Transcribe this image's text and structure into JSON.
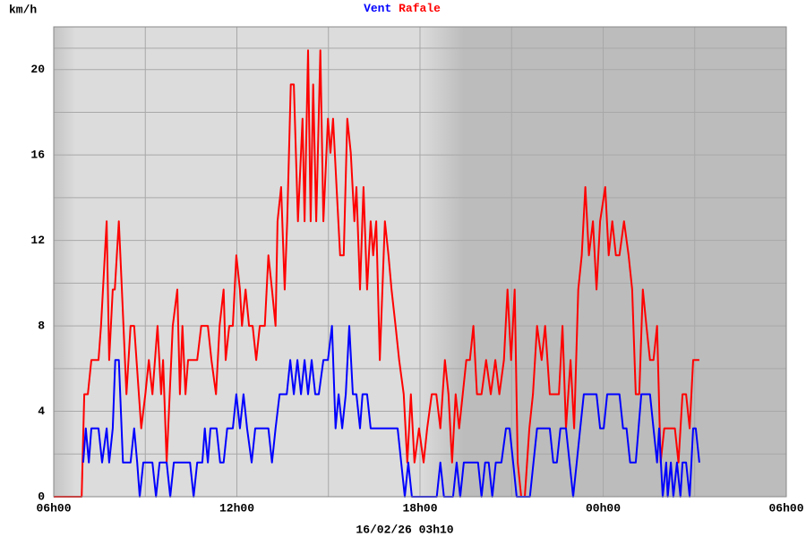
{
  "chart_data": {
    "type": "line",
    "y_label": "km/h",
    "date_label": "16/02/26 03h10",
    "xlim": [
      0,
      1440
    ],
    "ylim": [
      0,
      22
    ],
    "xticks": [
      {
        "value": 0,
        "label": "06h00"
      },
      {
        "value": 360,
        "label": "12h00"
      },
      {
        "value": 720,
        "label": "18h00"
      },
      {
        "value": 1080,
        "label": "00h00"
      },
      {
        "value": 1440,
        "label": "06h00"
      }
    ],
    "yticks": [
      0,
      4,
      8,
      12,
      16,
      20
    ],
    "grid": true,
    "series": [
      {
        "name": "Vent",
        "color": "#0000ff",
        "x": [
          58,
          63,
          69,
          74,
          88,
          95,
          104,
          109,
          116,
          121,
          128,
          136,
          151,
          158,
          164,
          169,
          176,
          194,
          201,
          208,
          222,
          229,
          236,
          268,
          275,
          282,
          292,
          297,
          303,
          308,
          320,
          327,
          334,
          341,
          352,
          359,
          366,
          373,
          380,
          389,
          396,
          422,
          429,
          436,
          444,
          451,
          458,
          465,
          472,
          479,
          486,
          493,
          500,
          507,
          514,
          521,
          530,
          539,
          547,
          554,
          560,
          567,
          574,
          581,
          588,
          595,
          602,
          607,
          616,
          623,
          634,
          676,
          683,
          690,
          697,
          704,
          753,
          760,
          767,
          785,
          792,
          799,
          806,
          834,
          841,
          848,
          855,
          862,
          869,
          880,
          889,
          896,
          903,
          910,
          915,
          936,
          943,
          950,
          975,
          982,
          989,
          996,
          1007,
          1014,
          1021,
          1028,
          1035,
          1042,
          1067,
          1074,
          1081,
          1088,
          1112,
          1119,
          1126,
          1133,
          1144,
          1155,
          1172,
          1179,
          1186,
          1190,
          1197,
          1204,
          1207,
          1213,
          1218,
          1225,
          1232,
          1236,
          1243,
          1250,
          1257,
          1262,
          1269
        ],
        "values": [
          1.6,
          3.2,
          1.6,
          3.2,
          3.2,
          1.6,
          3.2,
          1.6,
          3.2,
          6.4,
          6.4,
          1.6,
          1.6,
          3.2,
          1.6,
          0,
          1.6,
          1.6,
          0,
          1.6,
          1.6,
          0,
          1.6,
          1.6,
          0,
          1.6,
          1.6,
          3.2,
          1.6,
          3.2,
          3.2,
          1.6,
          1.6,
          3.2,
          3.2,
          4.8,
          3.2,
          4.8,
          3.2,
          1.6,
          3.2,
          3.2,
          1.6,
          3.2,
          4.8,
          4.8,
          4.8,
          6.4,
          4.8,
          6.4,
          4.8,
          6.4,
          4.8,
          6.4,
          4.8,
          4.8,
          6.4,
          6.4,
          8.0,
          3.2,
          4.8,
          3.2,
          4.8,
          8.0,
          4.8,
          4.8,
          3.2,
          4.8,
          4.8,
          3.2,
          3.2,
          3.2,
          1.6,
          0,
          1.6,
          0,
          0,
          1.6,
          0,
          0,
          1.6,
          0,
          1.6,
          1.6,
          0,
          1.6,
          1.6,
          0,
          1.6,
          1.6,
          3.2,
          3.2,
          1.6,
          0,
          0,
          0,
          1.6,
          3.2,
          3.2,
          1.6,
          1.6,
          3.2,
          3.2,
          1.6,
          0,
          1.6,
          3.2,
          4.8,
          4.8,
          3.2,
          3.2,
          4.8,
          4.8,
          3.2,
          3.2,
          1.6,
          1.6,
          4.8,
          4.8,
          3.2,
          1.6,
          3.2,
          0,
          1.6,
          0,
          1.6,
          0,
          1.6,
          0,
          1.6,
          1.6,
          0,
          3.2,
          3.2,
          1.6
        ]
      },
      {
        "name": "Rafale",
        "color": "#ff0000",
        "x": [
          0,
          55,
          60,
          67,
          74,
          88,
          93,
          104,
          109,
          116,
          120,
          128,
          134,
          143,
          151,
          158,
          172,
          180,
          187,
          194,
          204,
          211,
          215,
          222,
          234,
          243,
          248,
          253,
          259,
          264,
          273,
          282,
          290,
          303,
          310,
          319,
          326,
          334,
          338,
          345,
          352,
          359,
          366,
          370,
          377,
          384,
          391,
          398,
          405,
          415,
          422,
          429,
          436,
          440,
          447,
          454,
          459,
          466,
          472,
          480,
          489,
          493,
          500,
          505,
          510,
          516,
          524,
          530,
          539,
          544,
          549,
          556,
          563,
          570,
          577,
          584,
          591,
          595,
          602,
          609,
          616,
          623,
          628,
          634,
          641,
          651,
          658,
          664,
          672,
          679,
          688,
          695,
          702,
          709,
          718,
          727,
          734,
          743,
          752,
          760,
          769,
          776,
          783,
          790,
          797,
          804,
          811,
          818,
          825,
          832,
          841,
          850,
          859,
          868,
          876,
          885,
          892,
          899,
          906,
          912,
          919,
          926,
          935,
          942,
          950,
          959,
          966,
          975,
          984,
          993,
          1000,
          1007,
          1016,
          1023,
          1031,
          1038,
          1045,
          1052,
          1060,
          1067,
          1074,
          1084,
          1091,
          1098,
          1105,
          1112,
          1121,
          1130,
          1137,
          1144,
          1151,
          1158,
          1165,
          1172,
          1179,
          1186,
          1193,
          1200,
          1207,
          1214,
          1221,
          1228,
          1236,
          1243,
          1250,
          1257,
          1264,
          1269
        ],
        "values": [
          0,
          0,
          4.8,
          4.8,
          6.4,
          6.4,
          8.0,
          12.9,
          6.4,
          9.7,
          9.7,
          12.9,
          9.7,
          4.8,
          8.0,
          8.0,
          3.2,
          4.8,
          6.4,
          4.8,
          8.0,
          4.8,
          6.4,
          1.6,
          8.0,
          9.7,
          4.8,
          8.0,
          4.8,
          6.4,
          6.4,
          6.4,
          8.0,
          8.0,
          6.4,
          4.8,
          8.0,
          9.7,
          6.4,
          8.0,
          8.0,
          11.3,
          9.7,
          8.0,
          9.7,
          8.0,
          8.0,
          6.4,
          8.0,
          8.0,
          11.3,
          9.7,
          8.0,
          12.9,
          14.5,
          9.7,
          12.9,
          19.3,
          19.3,
          12.9,
          17.7,
          12.9,
          20.9,
          12.9,
          19.3,
          12.9,
          20.9,
          12.9,
          17.7,
          16.1,
          17.7,
          14.5,
          11.3,
          11.3,
          17.7,
          16.1,
          12.9,
          14.5,
          9.7,
          14.5,
          9.7,
          12.9,
          11.3,
          12.9,
          6.4,
          12.9,
          11.3,
          9.7,
          8.0,
          6.4,
          4.8,
          1.6,
          4.8,
          1.6,
          3.2,
          1.6,
          3.2,
          4.8,
          4.8,
          3.2,
          6.4,
          4.8,
          1.6,
          4.8,
          3.2,
          4.8,
          6.4,
          6.4,
          8.0,
          4.8,
          4.8,
          6.4,
          4.8,
          6.4,
          4.8,
          6.4,
          9.7,
          6.4,
          9.7,
          1.6,
          0,
          0,
          3.2,
          4.8,
          8.0,
          6.4,
          8.0,
          4.8,
          4.8,
          4.8,
          8.0,
          3.2,
          6.4,
          3.2,
          9.7,
          11.3,
          14.5,
          11.3,
          12.9,
          9.7,
          12.9,
          14.5,
          11.3,
          12.9,
          11.3,
          11.3,
          12.9,
          11.3,
          9.7,
          4.8,
          4.8,
          9.7,
          8.0,
          6.4,
          6.4,
          8.0,
          1.6,
          3.2,
          3.2,
          3.2,
          3.2,
          1.6,
          4.8,
          4.8,
          3.2,
          6.4,
          6.4,
          6.4
        ]
      }
    ]
  }
}
